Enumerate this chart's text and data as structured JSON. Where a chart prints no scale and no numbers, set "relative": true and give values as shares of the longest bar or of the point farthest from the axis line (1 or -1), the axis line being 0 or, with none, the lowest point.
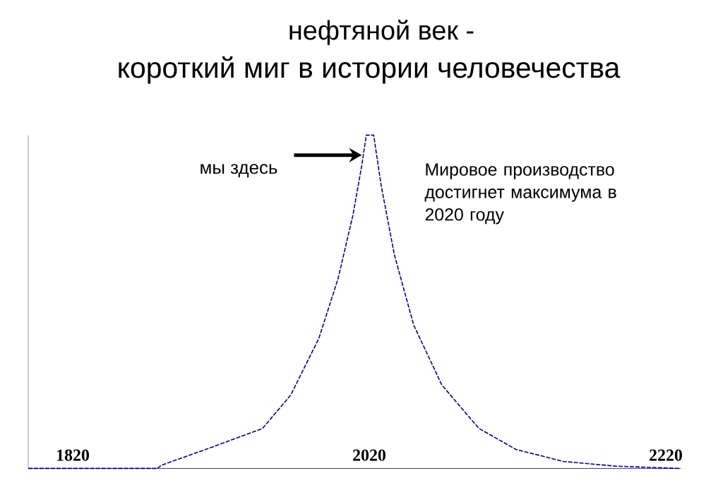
{
  "chart_data": {
    "type": "line",
    "title": "нефтяной век -",
    "subtitle": "короткий миг в истории человечества",
    "x": [
      1790,
      1877,
      1880,
      1914,
      1948,
      1967,
      1986,
      1999,
      2009,
      2015,
      2018,
      2023,
      2028,
      2037,
      2050,
      2069,
      2094,
      2119,
      2151,
      2186,
      2229
    ],
    "values": [
      0,
      0,
      0.01,
      0.064,
      0.12,
      0.22,
      0.39,
      0.57,
      0.76,
      0.91,
      1,
      1,
      0.85,
      0.64,
      0.43,
      0.25,
      0.12,
      0.057,
      0.021,
      0.007,
      0
    ],
    "color": "#000080",
    "line_style": "dashed",
    "relative": true,
    "xlim": [
      1790,
      2230
    ],
    "xticks": [
      1820,
      2020,
      2220
    ],
    "annotations": [
      {
        "text": "мы здесь",
        "x": 2015,
        "y": 0.94
      },
      "Мировое производство достигнет максимума в 2020 году"
    ]
  }
}
